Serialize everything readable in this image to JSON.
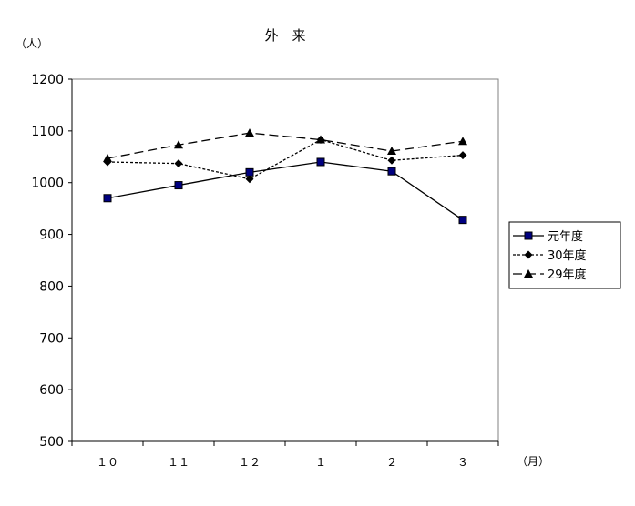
{
  "chart_data": {
    "type": "line",
    "title": "外　来",
    "unit_y": "（人）",
    "unit_x": "（月）",
    "categories": [
      "１０",
      "１１",
      "１２",
      "１",
      "２",
      "３"
    ],
    "ylim": [
      500,
      1200
    ],
    "yticks": [
      "500",
      "600",
      "700",
      "800",
      "900",
      "1000",
      "1100",
      "1200"
    ],
    "grid": false,
    "legend_position": "right",
    "series": [
      {
        "name": "元年度",
        "values": [
          970,
          995,
          1020,
          1040,
          1022,
          928
        ],
        "marker": "square",
        "dash": "solid",
        "color": "#000000",
        "marker_fill": "#000080"
      },
      {
        "name": "30年度",
        "values": [
          1040,
          1037,
          1007,
          1083,
          1043,
          1053
        ],
        "marker": "diamond",
        "dash": "dotted",
        "color": "#000000",
        "marker_fill": "#000000"
      },
      {
        "name": "29年度",
        "values": [
          1047,
          1073,
          1096,
          1083,
          1061,
          1080
        ],
        "marker": "triangle",
        "dash": "dashed",
        "color": "#000000",
        "marker_fill": "#000000"
      }
    ]
  }
}
